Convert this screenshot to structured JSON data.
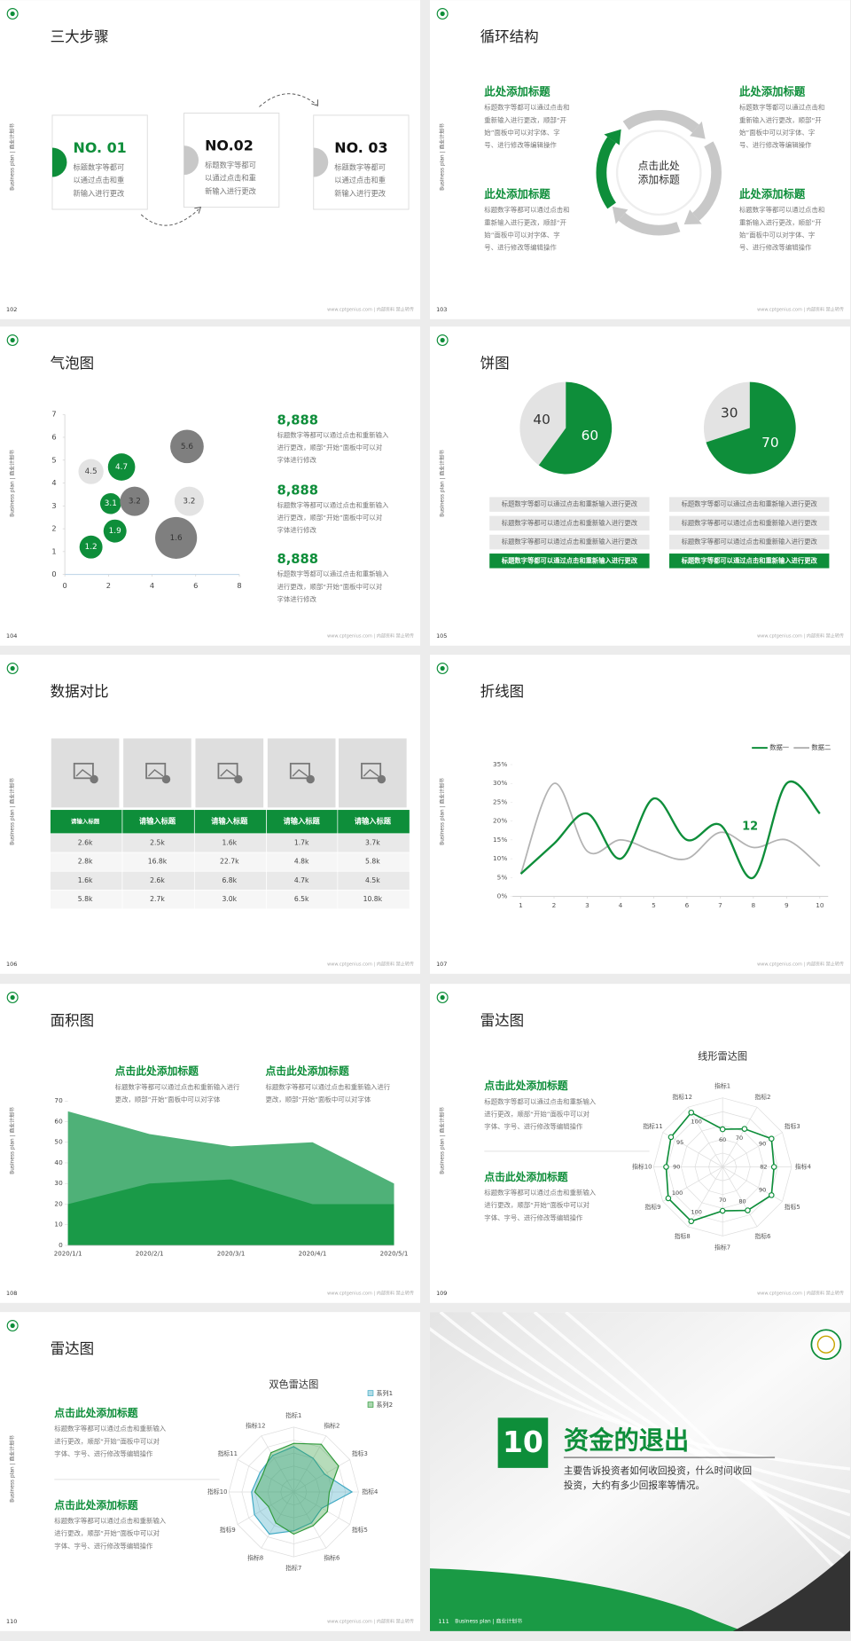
{
  "common": {
    "side_label": "Business plan | 商业计划书",
    "footer": "www.cptgenius.com | 内部资料 禁止转传"
  },
  "slides": [
    {
      "page": "102",
      "title": "三大步骤",
      "steps": [
        {
          "label": "NO. 01",
          "lines": [
            "标题数字等都可",
            "以通过点击和重",
            "新输入进行更改"
          ]
        },
        {
          "label": "NO.02",
          "lines": [
            "标题数字等都可",
            "以通过点击和重",
            "新输入进行更改"
          ]
        },
        {
          "label": "NO. 03",
          "lines": [
            "标题数字等都可",
            "以通过点击和重",
            "新输入进行更改"
          ]
        }
      ]
    },
    {
      "page": "103",
      "title": "循环结构",
      "center": [
        "点击此处",
        "添加标题"
      ],
      "blocks": [
        {
          "heading": "此处添加标题",
          "lines": [
            "标题数字等都可以通过点击和",
            "重新输入进行更改，顺部“开",
            "始”面板中可以对字体、字",
            "号、进行修改等编辑操作"
          ]
        },
        {
          "heading": "此处添加标题",
          "lines": [
            "标题数字等都可以通过点击和",
            "重新输入进行更改，顺部“开",
            "始”面板中可以对字体、字",
            "号、进行修改等编辑操作"
          ]
        },
        {
          "heading": "此处添加标题",
          "lines": [
            "标题数字等都可以通过点击和",
            "重新输入进行更改，顺部“开",
            "始”面板中可以对字体、字",
            "号、进行修改等编辑操作"
          ]
        },
        {
          "heading": "此处添加标题",
          "lines": [
            "标题数字等都可以通过点击和",
            "重新输入进行更改，顺部“开",
            "始”面板中可以对字体、字",
            "号、进行修改等编辑操作"
          ]
        }
      ]
    },
    {
      "page": "104",
      "title": "气泡图",
      "chart": {
        "type": "bubble",
        "x": [
          1.2,
          1.2,
          2.6,
          2.3,
          2.1,
          3.2,
          5.6,
          5.7,
          5.1
        ],
        "values": [
          1.2,
          4.5,
          4.7,
          1.9,
          3.1,
          3.2,
          5.6,
          3.2,
          1.6
        ],
        "sizes": [
          1.1,
          1.2,
          1.3,
          1.1,
          1.0,
          1.4,
          1.6,
          1.4,
          2.0
        ],
        "colors": [
          "#0e8e3a",
          "#e3e3e3",
          "#0e8e3a",
          "#0e8e3a",
          "#0e8e3a",
          "#7f7f7f",
          "#7f7f7f",
          "#e3e3e3",
          "#7f7f7f"
        ],
        "xlim": [
          0,
          8
        ],
        "xticks": [
          0,
          2,
          4,
          6,
          8
        ],
        "ylim": [
          0,
          7
        ],
        "yticks": [
          0,
          1,
          2,
          3,
          4,
          5,
          6,
          7
        ]
      },
      "notes": [
        {
          "value": "8,888",
          "lines": [
            "标题数字等都可以通过点击和重新输入",
            "进行更改，顺部“开始”面板中可以对",
            "字体进行修改"
          ]
        },
        {
          "value": "8,888",
          "lines": [
            "标题数字等都可以通过点击和重新输入",
            "进行更改，顺部“开始”面板中可以对",
            "字体进行修改"
          ]
        },
        {
          "value": "8,888",
          "lines": [
            "标题数字等都可以通过点击和重新输入",
            "进行更改，顺部“开始”面板中可以对",
            "字体进行修改"
          ]
        }
      ]
    },
    {
      "page": "105",
      "title": "饼图",
      "charts": [
        {
          "type": "pie",
          "values": [
            40,
            60
          ],
          "colors": [
            "#e3e3e3",
            "#0e8e3a"
          ]
        },
        {
          "type": "pie",
          "values": [
            30,
            70
          ],
          "colors": [
            "#e3e3e3",
            "#0e8e3a"
          ]
        }
      ],
      "rows": [
        [
          "标题数字等都可以通过点击和重新输入进行更改",
          "标题数字等都可以通过点击和重新输入进行更改",
          "标题数字等都可以通过点击和重新输入进行更改",
          "标题数字等都可以通过点击和重新输入进行更改"
        ],
        [
          "标题数字等都可以通过点击和重新输入进行更改",
          "标题数字等都可以通过点击和重新输入进行更改",
          "标题数字等都可以通过点击和重新输入进行更改",
          "标题数字等都可以通过点击和重新输入进行更改"
        ]
      ]
    },
    {
      "page": "106",
      "title": "数据对比",
      "table": {
        "header": [
          "请输入标题",
          "请输入标题",
          "请输入标题",
          "请输入标题",
          "请输入标题"
        ],
        "rows": [
          [
            "2.6k",
            "2.5k",
            "1.6k",
            "1.7k",
            "3.7k"
          ],
          [
            "2.8k",
            "16.8k",
            "22.7k",
            "4.8k",
            "5.8k"
          ],
          [
            "1.6k",
            "2.6k",
            "6.8k",
            "4.7k",
            "4.5k"
          ],
          [
            "5.8k",
            "2.7k",
            "3.0k",
            "6.5k",
            "10.8k"
          ]
        ]
      }
    },
    {
      "page": "107",
      "title": "折线图",
      "chart": {
        "type": "line",
        "x": [
          1,
          2,
          3,
          4,
          5,
          6,
          7,
          8,
          9,
          10
        ],
        "xlim": [
          0.75,
          10.25
        ],
        "xticks": [
          1,
          2,
          3,
          4,
          5,
          6,
          7,
          8,
          9,
          10
        ],
        "ylim": [
          0,
          35
        ],
        "yticks": [
          {
            "value": 0,
            "label": "0%"
          },
          {
            "value": 5,
            "label": "5%"
          },
          {
            "value": 10,
            "label": "10%"
          },
          {
            "value": 15,
            "label": "15%"
          },
          {
            "value": 20,
            "label": "20%"
          },
          {
            "value": 25,
            "label": "25%"
          },
          {
            "value": 30,
            "label": "30%"
          },
          {
            "value": 35,
            "label": "35%"
          }
        ],
        "series": [
          {
            "name": "数据一",
            "color": "#0e8e3a",
            "values": [
              6,
              14,
              22,
              10,
              26,
              15,
              19,
              5,
              30,
              22
            ]
          },
          {
            "name": "数据二",
            "color": "#b3b3b3",
            "values": [
              6,
              30,
              12,
              15,
              12,
              10,
              17,
              13,
              15,
              8
            ]
          }
        ],
        "legend": "top-right",
        "annotation": "12"
      }
    },
    {
      "page": "108",
      "title": "面积图",
      "blocks": [
        {
          "heading": "点击此处添加标题",
          "lines": [
            "标题数字等都可以通过点击和重新输入进行",
            "更改，顺部“开始”面板中可以对字体"
          ]
        },
        {
          "heading": "点击此处添加标题",
          "lines": [
            "标题数字等都可以通过点击和重新输入进行",
            "更改，顺部“开始”面板中可以对字体"
          ]
        }
      ],
      "chart": {
        "type": "area",
        "categories": [
          "2020/1/1",
          "2020/2/1",
          "2020/3/1",
          "2020/4/1",
          "2020/5/1"
        ],
        "ylim": [
          0,
          70
        ],
        "yticks": [
          0,
          10,
          20,
          30,
          40,
          50,
          60,
          70
        ],
        "series": [
          {
            "color": "#4fb178",
            "values": [
              65,
              54,
              48,
              50,
              30
            ]
          },
          {
            "color": "#1a9a48",
            "values": [
              20,
              30,
              32,
              20,
              20
            ]
          }
        ]
      }
    },
    {
      "page": "109",
      "title": "雷达图",
      "blocks": [
        {
          "heading": "点击此处添加标题",
          "lines": [
            "标题数字等都可以通过点击和重新输入",
            "进行更改，顺部“开始”面板中可以对",
            "字体、字号、进行修改等编辑操作"
          ]
        },
        {
          "heading": "点击此处添加标题",
          "lines": [
            "标题数字等都可以通过点击和重新输入",
            "进行更改，顺部“开始”面板中可以对",
            "字体、字号、进行修改等编辑操作"
          ]
        }
      ],
      "chart": {
        "type": "radar",
        "title": "线形雷达图",
        "categories": [
          "指标1",
          "指标2",
          "指标3",
          "指标4",
          "指标5",
          "指标6",
          "指标7",
          "指标8",
          "指标9",
          "指标10",
          "指标11",
          "指标12"
        ],
        "rlim": [
          0,
          110
        ],
        "series": [
          {
            "color": "#0e8e3a",
            "values": [
              60,
              70,
              90,
              82,
              90,
              80,
              70,
              100,
              100,
              90,
              95,
              100
            ]
          }
        ]
      }
    },
    {
      "page": "110",
      "title": "雷达图",
      "blocks": [
        {
          "heading": "点击此处添加标题",
          "lines": [
            "标题数字等都可以通过点击和重新输入",
            "进行更改，顺部“开始”面板中可以对",
            "字体、字号、进行修改等编辑操作"
          ]
        },
        {
          "heading": "点击此处添加标题",
          "lines": [
            "标题数字等都可以通过点击和重新输入",
            "进行更改，顺部“开始”面板中可以对",
            "字体、字号、进行修改等编辑操作"
          ]
        }
      ],
      "chart": {
        "type": "radar",
        "title": "双色雷达图",
        "categories": [
          "指标1",
          "指标2",
          "指标3",
          "指标4",
          "指标5",
          "指标6",
          "指标7",
          "指标8",
          "指标9",
          "指标10",
          "指标11",
          "指标12"
        ],
        "rlim": [
          0,
          100
        ],
        "legend": "top-right",
        "series": [
          {
            "name": "系列1",
            "color": "#3fa9c4",
            "values": [
              70,
              60,
              55,
              90,
              50,
              55,
              60,
              75,
              70,
              65,
              60,
              65
            ]
          },
          {
            "name": "系列2",
            "color": "#2f9a3a",
            "values": [
              75,
              85,
              80,
              55,
              60,
              60,
              65,
              55,
              45,
              60,
              55,
              70
            ]
          }
        ]
      }
    },
    {
      "page": "111",
      "number": "10",
      "title": "资金的退出",
      "lines": [
        "主要告诉投资者如何收回投资，什么时间收回",
        "投资，大约有多少回报率等情况。"
      ],
      "footer": "Business plan | 商业计划书"
    }
  ]
}
